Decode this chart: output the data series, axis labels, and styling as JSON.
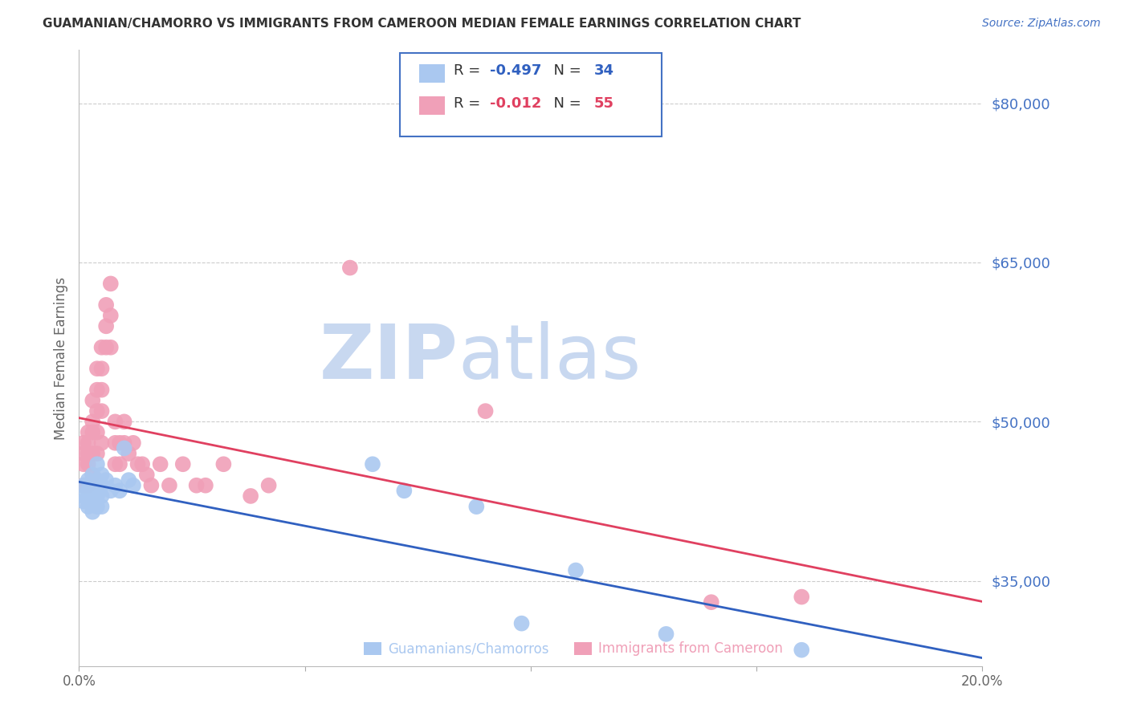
{
  "title": "GUAMANIAN/CHAMORRO VS IMMIGRANTS FROM CAMEROON MEDIAN FEMALE EARNINGS CORRELATION CHART",
  "source": "Source: ZipAtlas.com",
  "ylabel": "Median Female Earnings",
  "xlim": [
    0.0,
    0.2
  ],
  "ylim": [
    27000,
    85000
  ],
  "yticks": [
    35000,
    50000,
    65000,
    80000
  ],
  "ytick_labels": [
    "$35,000",
    "$50,000",
    "$65,000",
    "$80,000"
  ],
  "xticks": [
    0.0,
    0.05,
    0.1,
    0.15,
    0.2
  ],
  "xtick_labels": [
    "0.0%",
    "",
    "",
    "",
    "20.0%"
  ],
  "series1_label": "Guamanians/Chamorros",
  "series1_R": "-0.497",
  "series1_N": "34",
  "series1_color": "#aac8f0",
  "series2_label": "Immigrants from Cameroon",
  "series2_R": "-0.012",
  "series2_N": "55",
  "series2_color": "#f0a0b8",
  "line1_color": "#3060c0",
  "line2_color": "#e04060",
  "background_color": "#ffffff",
  "grid_color": "#cccccc",
  "title_color": "#333333",
  "source_color": "#4472c4",
  "axis_label_color": "#666666",
  "ytick_color": "#4472c4",
  "xtick_color": "#666666",
  "watermark_zip_color": "#c8d8f0",
  "watermark_atlas_color": "#c8d8f0",
  "legend_box_color": "#4472c4",
  "guam_x": [
    0.001,
    0.001,
    0.001,
    0.002,
    0.002,
    0.002,
    0.002,
    0.003,
    0.003,
    0.003,
    0.003,
    0.003,
    0.004,
    0.004,
    0.004,
    0.004,
    0.005,
    0.005,
    0.005,
    0.005,
    0.006,
    0.007,
    0.008,
    0.009,
    0.01,
    0.011,
    0.012,
    0.065,
    0.072,
    0.088,
    0.098,
    0.11,
    0.13,
    0.16
  ],
  "guam_y": [
    44000,
    43000,
    42500,
    44500,
    43500,
    43000,
    42000,
    45000,
    44000,
    43500,
    42500,
    41500,
    46000,
    44500,
    43000,
    42000,
    45000,
    44000,
    43000,
    42000,
    44500,
    43500,
    44000,
    43500,
    47500,
    44500,
    44000,
    46000,
    43500,
    42000,
    31000,
    36000,
    30000,
    28500
  ],
  "cam_x": [
    0.001,
    0.001,
    0.001,
    0.001,
    0.002,
    0.002,
    0.002,
    0.002,
    0.002,
    0.003,
    0.003,
    0.003,
    0.003,
    0.003,
    0.004,
    0.004,
    0.004,
    0.004,
    0.004,
    0.005,
    0.005,
    0.005,
    0.005,
    0.005,
    0.006,
    0.006,
    0.006,
    0.007,
    0.007,
    0.007,
    0.008,
    0.008,
    0.008,
    0.009,
    0.009,
    0.01,
    0.01,
    0.011,
    0.012,
    0.013,
    0.014,
    0.015,
    0.016,
    0.018,
    0.02,
    0.023,
    0.026,
    0.028,
    0.032,
    0.038,
    0.042,
    0.06,
    0.09,
    0.14,
    0.16
  ],
  "cam_y": [
    48000,
    47000,
    46000,
    44000,
    49000,
    48000,
    47000,
    46000,
    44000,
    52000,
    50000,
    49000,
    47000,
    45000,
    55000,
    53000,
    51000,
    49000,
    47000,
    57000,
    55000,
    53000,
    51000,
    48000,
    61000,
    59000,
    57000,
    63000,
    60000,
    57000,
    50000,
    48000,
    46000,
    48000,
    46000,
    50000,
    48000,
    47000,
    48000,
    46000,
    46000,
    45000,
    44000,
    46000,
    44000,
    46000,
    44000,
    44000,
    46000,
    43000,
    44000,
    64500,
    51000,
    33000,
    33500
  ]
}
